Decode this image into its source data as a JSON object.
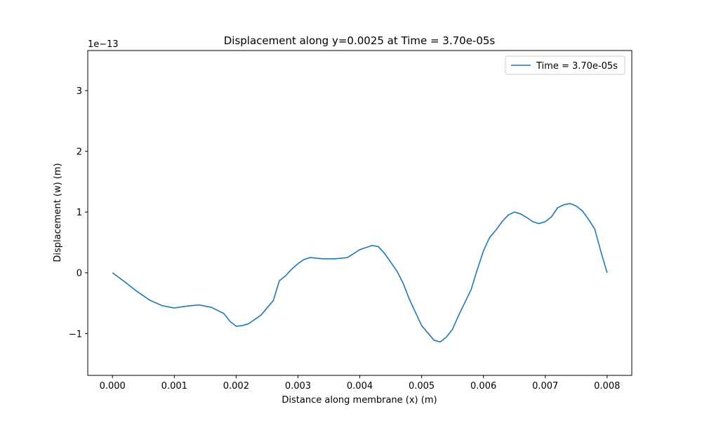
{
  "chart_data": {
    "type": "line",
    "title": "Displacement along y=0.0025 at Time = 3.70e-05s",
    "x_label": "Distance along membrane (x) (m)",
    "y_label": "Displacement (w) (m)",
    "y_offset_label": "1e−13",
    "legend_position": "upper right",
    "x": [
      0,
      0.0002,
      0.0004,
      0.0006,
      0.0008,
      0.001,
      0.0012,
      0.0014,
      0.0016,
      0.0018,
      0.0019,
      0.002,
      0.0021,
      0.0022,
      0.0024,
      0.0026,
      0.0027,
      0.0028,
      0.0029,
      0.003,
      0.0031,
      0.0032,
      0.0034,
      0.0036,
      0.0038,
      0.004,
      0.0042,
      0.0043,
      0.0044,
      0.0046,
      0.0047,
      0.0048,
      0.005,
      0.0052,
      0.0053,
      0.0054,
      0.0055,
      0.0056,
      0.0058,
      0.0059,
      0.006,
      0.0061,
      0.0062,
      0.0063,
      0.0064,
      0.0065,
      0.0066,
      0.0067,
      0.0068,
      0.0069,
      0.007,
      0.0071,
      0.0072,
      0.0073,
      0.0074,
      0.0075,
      0.0076,
      0.0077,
      0.0078,
      0.0079,
      0.008
    ],
    "series": [
      {
        "name": "Time = 3.70e-05s",
        "color": "#1f77b4",
        "values": [
          0,
          -0.15,
          -0.31,
          -0.45,
          -0.54,
          -0.58,
          -0.55,
          -0.53,
          -0.57,
          -0.67,
          -0.8,
          -0.88,
          -0.87,
          -0.84,
          -0.7,
          -0.46,
          -0.13,
          -0.05,
          0.06,
          0.15,
          0.22,
          0.25,
          0.23,
          0.23,
          0.25,
          0.38,
          0.45,
          0.43,
          0.32,
          0.03,
          -0.17,
          -0.43,
          -0.87,
          -1.11,
          -1.14,
          -1.06,
          -0.93,
          -0.7,
          -0.28,
          0.05,
          0.36,
          0.58,
          0.7,
          0.84,
          0.95,
          1.0,
          0.97,
          0.91,
          0.84,
          0.81,
          0.84,
          0.92,
          1.07,
          1.12,
          1.14,
          1.1,
          1.02,
          0.88,
          0.72,
          0.35,
          0
        ]
      }
    ],
    "xlim": [
      -0.0004,
      0.0084
    ],
    "ylim": [
      -1.69,
      3.66
    ],
    "xticks": [
      {
        "value": 0,
        "label": "0.000"
      },
      {
        "value": 0.001,
        "label": "0.001"
      },
      {
        "value": 0.002,
        "label": "0.002"
      },
      {
        "value": 0.003,
        "label": "0.003"
      },
      {
        "value": 0.004,
        "label": "0.004"
      },
      {
        "value": 0.005,
        "label": "0.005"
      },
      {
        "value": 0.006,
        "label": "0.006"
      },
      {
        "value": 0.007,
        "label": "0.007"
      },
      {
        "value": 0.008,
        "label": "0.008"
      }
    ],
    "yticks": [
      {
        "value": -1,
        "label": "−1"
      },
      0,
      1,
      2,
      3
    ],
    "grid": false
  }
}
